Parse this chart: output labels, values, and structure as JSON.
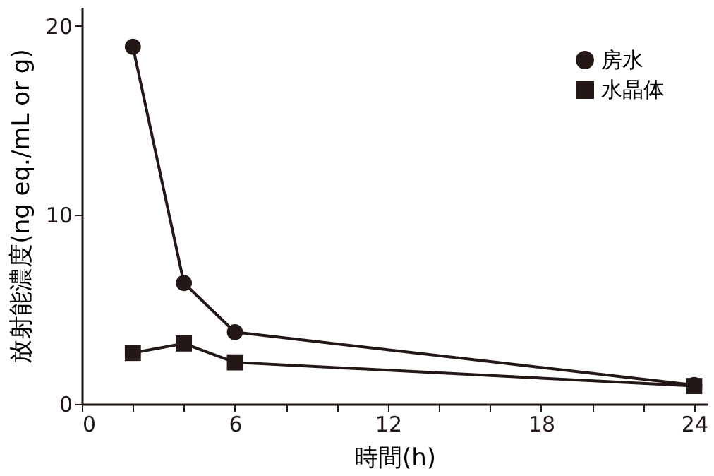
{
  "chart_data": {
    "type": "line",
    "xlabel": "時間(h)",
    "ylabel": "放射能濃度(ng eq./mL or g)",
    "xlim": [
      0,
      24.5
    ],
    "ylim": [
      0,
      21
    ],
    "xticks": [
      0,
      {
        "value": 2,
        "label": null
      },
      {
        "value": 4,
        "label": null
      },
      6,
      {
        "value": 8,
        "label": null
      },
      {
        "value": 10,
        "label": null
      },
      12,
      {
        "value": 14,
        "label": null
      },
      {
        "value": 16,
        "label": null
      },
      18,
      {
        "value": 20,
        "label": null
      },
      {
        "value": 22,
        "label": null
      },
      24
    ],
    "yticks": [
      0,
      10,
      20
    ],
    "grid": false,
    "legend": "top right",
    "series": [
      {
        "name": "房水",
        "color": "#231815",
        "marker": "circle",
        "x": [
          2,
          4,
          6,
          24
        ],
        "values": [
          18.9,
          6.4,
          3.8,
          1.0
        ]
      },
      {
        "name": "水晶体",
        "color": "#231815",
        "marker": "square",
        "x": [
          2,
          4,
          6,
          24
        ],
        "values": [
          2.7,
          3.2,
          2.2,
          0.95
        ]
      }
    ]
  }
}
